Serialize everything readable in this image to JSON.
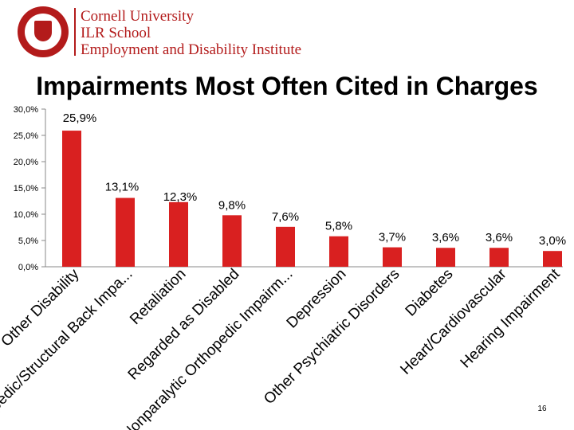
{
  "header": {
    "line1": "Cornell University",
    "line2": "ILR School",
    "line3": "Employment and Disability Institute",
    "brand_color": "#b31b1b"
  },
  "slide": {
    "page_number": "16"
  },
  "chart_data": {
    "type": "bar",
    "title": "Impairments Most Often Cited in Charges",
    "categories": [
      "Other Disability",
      "Orthopedic/Structural Back Impa...",
      "Retaliation",
      "Regarded as Disabled",
      "Nonparalytic Orthopedic Impairm...",
      "Depression",
      "Other Psychiatric Disorders",
      "Diabetes",
      "Heart/Cardiovascular",
      "Hearing Impairment"
    ],
    "values": [
      25.9,
      13.1,
      12.3,
      9.8,
      7.6,
      5.8,
      3.7,
      3.6,
      3.6,
      3.0
    ],
    "data_labels": [
      "25,9%",
      "13,1%",
      "12,3%",
      "9,8%",
      "7,6%",
      "5,8%",
      "3,7%",
      "3,6%",
      "3,6%",
      "3,0%"
    ],
    "ytick_labels": [
      "0,0%",
      "5,0%",
      "10,0%",
      "15,0%",
      "20,0%",
      "25,0%",
      "30,0%"
    ],
    "yticks": [
      0,
      5,
      10,
      15,
      20,
      25,
      30
    ],
    "ylim": [
      0,
      30
    ],
    "bar_color": "#d92020",
    "grid": false,
    "legend": "none",
    "xlabel": "",
    "ylabel": ""
  }
}
